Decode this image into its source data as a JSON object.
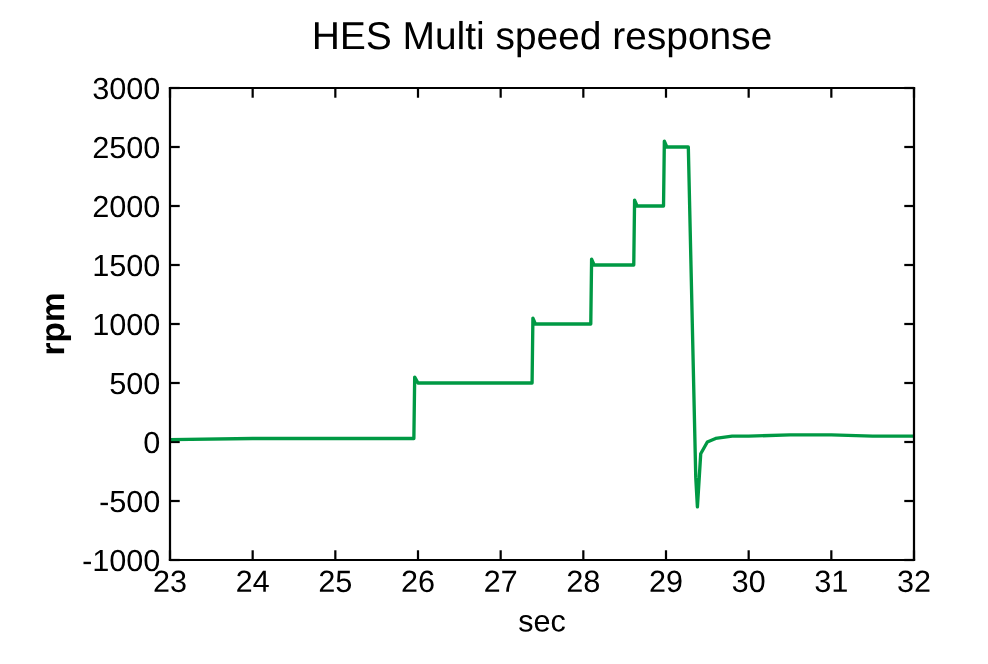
{
  "chart_data": {
    "type": "line",
    "title": "HES Multi speed response",
    "xlabel": "sec",
    "ylabel": "rpm",
    "series": [
      {
        "color": "#009944",
        "x": [
          23,
          24,
          25,
          25.95,
          25.96,
          26.0,
          26.5,
          27.0,
          27.38,
          27.39,
          27.42,
          27.8,
          28.09,
          28.1,
          28.13,
          28.4,
          28.61,
          28.62,
          28.65,
          28.8,
          28.97,
          28.98,
          29.01,
          29.15,
          29.27,
          29.36,
          29.38,
          29.42,
          29.5,
          29.6,
          29.8,
          30,
          30.5,
          31,
          31.5,
          32
        ],
        "values": [
          20,
          30,
          30,
          30,
          550,
          500,
          500,
          500,
          500,
          1050,
          1000,
          1000,
          1000,
          1550,
          1500,
          1500,
          1500,
          2050,
          2000,
          2000,
          2000,
          2550,
          2500,
          2500,
          2500,
          -300,
          -550,
          -100,
          0,
          30,
          50,
          50,
          60,
          60,
          50,
          50
        ]
      }
    ],
    "xlim": [
      23,
      32
    ],
    "ylim": [
      -1000,
      3000
    ],
    "xticks": [
      23,
      24,
      25,
      26,
      27,
      28,
      29,
      30,
      31,
      32
    ],
    "yticks": [
      -1000,
      -500,
      0,
      500,
      1000,
      1500,
      2000,
      2500,
      3000
    ],
    "grid": false,
    "legend": false
  }
}
